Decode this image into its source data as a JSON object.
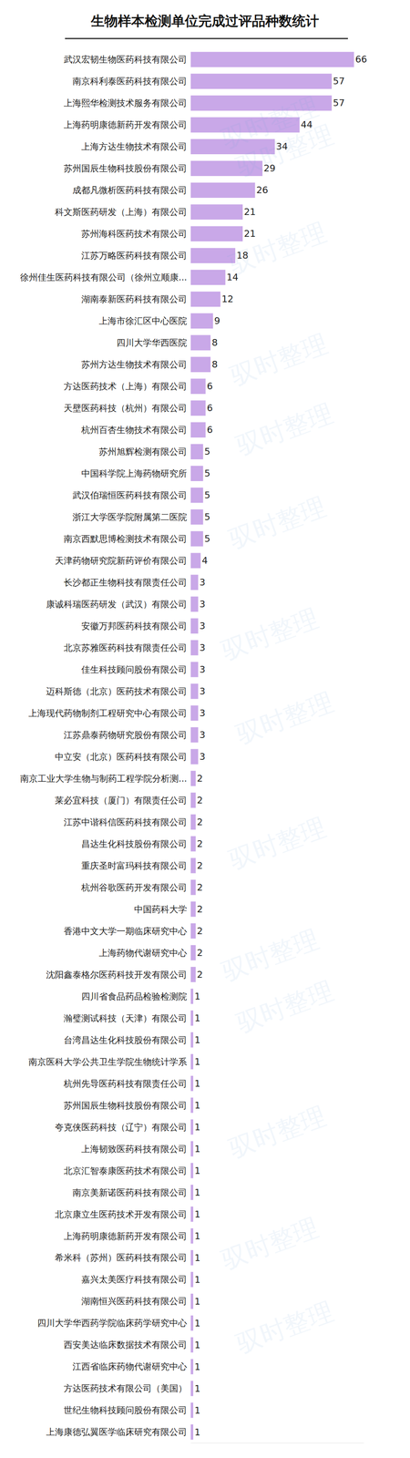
{
  "chart_data": {
    "type": "bar",
    "orientation": "horizontal",
    "title": "生物样本检测单位完成过评品种数统计",
    "watermark": "驭时整理",
    "categories": [
      "武汉宏韧生物医药科技有限公司",
      "南京科利泰医药科技有限公司",
      "上海熙华检测技术服务有限公司",
      "上海药明康德新药开发有限公司",
      "上海方达生物技术有限公司",
      "苏州国辰生物科技股份有限公司",
      "成都凡微析医药科技有限公司",
      "科文斯医药研发（上海）有限公司",
      "苏州海科医药技术有限公司",
      "江苏万略医药科技有限公司",
      "徐州佳生医药科技有限公司（徐州立顺康...",
      "湖南泰新医药科技有限公司",
      "上海市徐汇区中心医院",
      "四川大学华西医院",
      "苏州方达生物技术有限公司",
      "方达医药技术（上海）有限公司",
      "天壁医药科技（杭州）有限公司",
      "杭州百杏生物技术有限公司",
      "苏州旭辉检测有限公司",
      "中国科学院上海药物研究所",
      "武汉伯瑞恒医药科技有限公司",
      "浙江大学医学院附属第二医院",
      "南京西默思博检测技术有限公司",
      "天津药物研究院新药评价有限公司",
      "长沙都正生物科技有限责任公司",
      "康诚科瑞医药研发（武汉）有限公司",
      "安徽万邦医药科技有限公司",
      "北京苏雅医药科技有限责任公司",
      "佳生科技顾问股份有限公司",
      "迈科斯德（北京）医药技术有限公司",
      "上海现代药物制剂工程研究中心有限公司",
      "江苏鼎泰药物研究股份有限公司",
      "中立安（北京）医药科技有限公司",
      "南京工业大学生物与制药工程学院分析测...",
      "莱必宜科技（厦门）有限责任公司",
      "江苏中谐科信医药科技有限公司",
      "昌达生化科技股份有限公司",
      "重庆圣时富玛科技有限公司",
      "杭州谷歌医药开发有限公司",
      "中国药科大学",
      "香港中文大学一期临床研究中心",
      "上海药物代谢研究中心",
      "沈阳鑫泰格尔医药科技开发有限公司",
      "四川省食品药品检验检测院",
      "瀚璧测试科技（天津）有限公司",
      "台湾昌达生化科技股份有限公司",
      "南京医科大学公共卫生学院生物统计学系",
      "杭州先导医药科技有限责任公司",
      "苏州国辰生物科技股份有限公司",
      "夸克侠医药科技（辽宁）有限公司",
      "上海韧致医药科技有限公司",
      "北京汇智泰康医药技术有限公司",
      "南京美新诺医药科技有限公司",
      "北京康立生医药技术开发有限公司",
      "上海药明康德新药开发有限公司",
      "希米科（苏州）医药科技有限公司",
      "嘉兴太美医疗科技有限公司",
      "湖南恒兴医药科技有限公司",
      "四川大学华西药学院临床药学研究中心",
      "西安美达临床数据技术有限公司",
      "江西省临床药物代谢研究中心",
      "方达医药技术有限公司（美国）",
      "世纪生物科技顾问股份有限公司",
      "上海康德弘翼医学临床研究有限公司"
    ],
    "values": [
      66,
      57,
      57,
      44,
      34,
      29,
      26,
      21,
      21,
      18,
      14,
      12,
      9,
      8,
      8,
      6,
      6,
      6,
      5,
      5,
      5,
      5,
      5,
      4,
      3,
      3,
      3,
      3,
      3,
      3,
      3,
      3,
      3,
      2,
      2,
      2,
      2,
      2,
      2,
      2,
      2,
      2,
      2,
      1,
      1,
      1,
      1,
      1,
      1,
      1,
      1,
      1,
      1,
      1,
      1,
      1,
      1,
      1,
      1,
      1,
      1,
      1,
      1,
      1
    ],
    "color": "#c9a8e8",
    "xlim": [
      0,
      70
    ],
    "xticks": [],
    "grid": false,
    "data_labels": true,
    "tick_labels": "y"
  }
}
